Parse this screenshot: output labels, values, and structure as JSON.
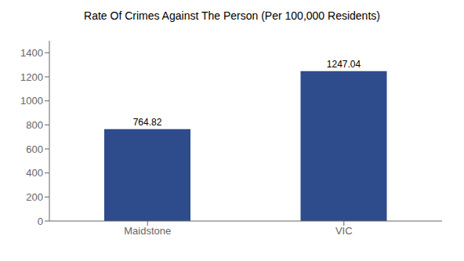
{
  "chart_data": {
    "type": "bar",
    "title": "Rate Of Crimes Against The Person (Per 100,000 Residents)",
    "categories": [
      "Maidstone",
      "VIC"
    ],
    "values": [
      764.82,
      1247.04
    ],
    "color": "#2e4b8c",
    "ylim": [
      0,
      1500
    ],
    "yticks": [
      0,
      200,
      400,
      600,
      800,
      1000,
      1200,
      1400
    ],
    "grid": false,
    "data_labels": true
  }
}
